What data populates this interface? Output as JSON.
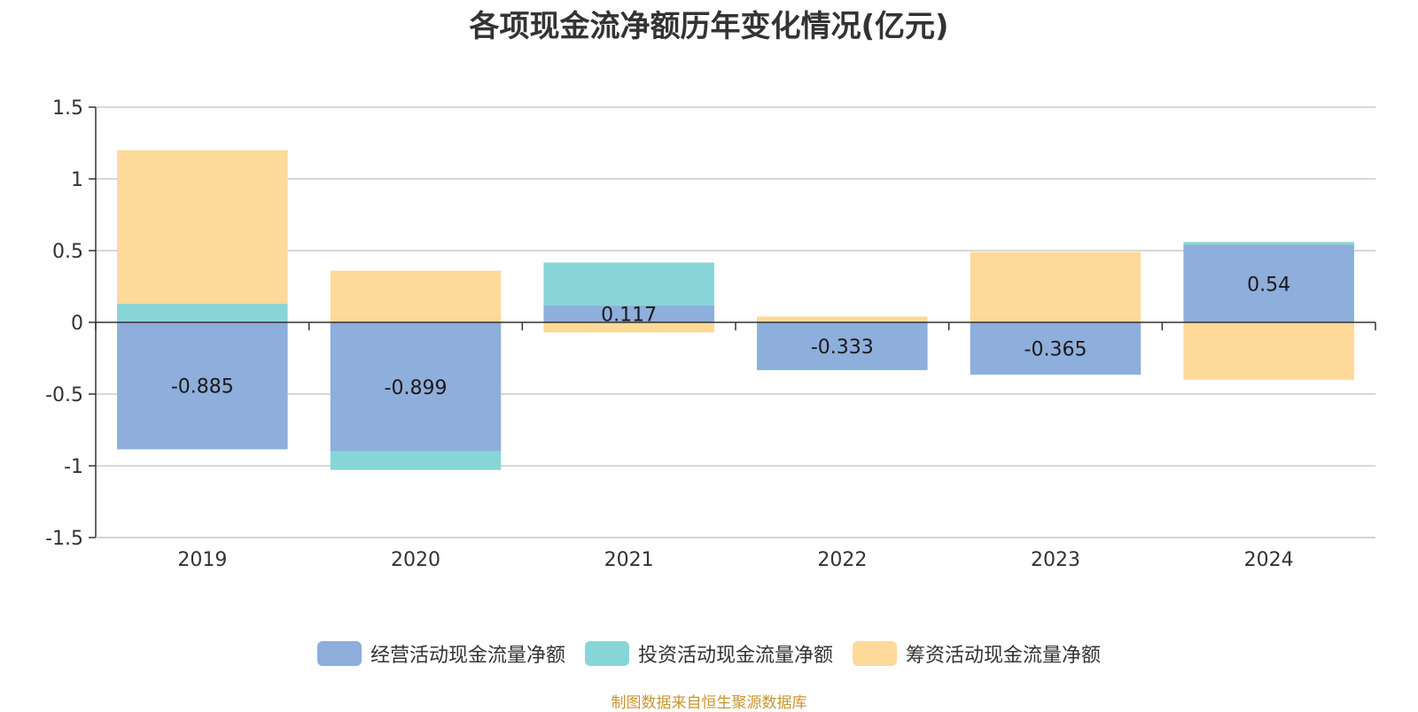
{
  "chart_data": {
    "type": "bar",
    "stacked": true,
    "title": "各项现金流净额历年变化情况(亿元)",
    "categories": [
      "2019",
      "2020",
      "2021",
      "2022",
      "2023",
      "2024"
    ],
    "series": [
      {
        "name": "经营活动现金流量净额",
        "color": "#8eaedb",
        "values": [
          -0.885,
          -0.899,
          0.117,
          -0.333,
          -0.365,
          0.54
        ]
      },
      {
        "name": "投资活动现金流量净额",
        "color": "#88d5d8",
        "values": [
          0.13,
          -0.13,
          0.3,
          0.005,
          0.0,
          0.02
        ]
      },
      {
        "name": "筹资活动现金流量净额",
        "color": "#fdd99a",
        "values": [
          1.07,
          0.36,
          -0.07,
          0.035,
          0.49,
          -0.4
        ]
      }
    ],
    "data_labels": [
      "-0.885",
      "-0.899",
      "0.117",
      "-0.333",
      "-0.365",
      "0.54"
    ],
    "ylim": [
      -1.5,
      1.5
    ],
    "yticks": [
      1.5,
      1,
      0.5,
      0,
      -0.5,
      -1,
      -1.5
    ],
    "ytick_labels": [
      "1.5",
      "1",
      "0.5",
      "0",
      "-0.5",
      "-1",
      "-1.5"
    ],
    "grid": true,
    "legend_position": "bottom-center"
  },
  "source_note": "制图数据来自恒生聚源数据库"
}
